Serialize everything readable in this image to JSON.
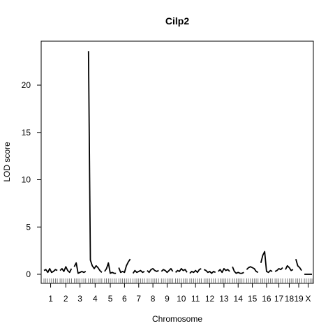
{
  "chart_data": {
    "type": "line",
    "title": "Cilp2",
    "xlabel": "Chromosome",
    "ylabel": "LOD score",
    "ylim": [
      -0.9,
      25.1
    ],
    "yticks": [
      0,
      5,
      10,
      15,
      20
    ],
    "grid": false,
    "legend": "none",
    "line_color": "#000000",
    "chromosomes": [
      {
        "label": "1",
        "x": [
          0,
          5,
          10,
          15,
          20,
          25,
          30,
          35
        ],
        "y": [
          0.4,
          0.5,
          0.2,
          0.6,
          0.2,
          0.3,
          0.5,
          0.4
        ]
      },
      {
        "label": "2",
        "x": [
          0,
          5,
          10,
          15,
          20,
          25,
          30
        ],
        "y": [
          0.4,
          0.6,
          0.3,
          0.8,
          0.4,
          0.2,
          0.6
        ]
      },
      {
        "label": "3",
        "x": [
          0,
          5,
          10,
          15,
          20,
          25,
          30
        ],
        "y": [
          0.8,
          1.2,
          0.1,
          0.2,
          0.3,
          0.2,
          0.3
        ]
      },
      {
        "label": "4",
        "x": [
          0,
          5,
          10,
          15,
          20,
          25,
          30,
          35
        ],
        "y": [
          23.6,
          1.5,
          0.9,
          0.6,
          0.9,
          0.7,
          0.4,
          0.2
        ]
      },
      {
        "label": "5",
        "x": [
          0,
          5,
          10,
          15,
          20,
          25,
          30
        ],
        "y": [
          0.3,
          0.6,
          1.2,
          0.1,
          0.2,
          0.1,
          0.1
        ]
      },
      {
        "label": "6",
        "x": [
          0,
          5,
          10,
          15,
          20,
          25,
          30
        ],
        "y": [
          0.7,
          0.2,
          0.3,
          0.2,
          0.9,
          1.3,
          1.6
        ]
      },
      {
        "label": "7",
        "x": [
          0,
          5,
          10,
          15,
          20,
          25,
          30
        ],
        "y": [
          0.1,
          0.4,
          0.2,
          0.3,
          0.4,
          0.2,
          0.3
        ]
      },
      {
        "label": "8",
        "x": [
          0,
          5,
          10,
          15,
          20,
          25,
          30
        ],
        "y": [
          0.4,
          0.2,
          0.5,
          0.6,
          0.4,
          0.3,
          0.4
        ]
      },
      {
        "label": "9",
        "x": [
          0,
          5,
          10,
          15,
          20,
          25,
          30
        ],
        "y": [
          0.3,
          0.5,
          0.4,
          0.2,
          0.4,
          0.6,
          0.3
        ]
      },
      {
        "label": "10",
        "x": [
          0,
          5,
          10,
          15,
          20,
          25,
          30
        ],
        "y": [
          0.2,
          0.4,
          0.3,
          0.6,
          0.4,
          0.5,
          0.2
        ]
      },
      {
        "label": "11",
        "x": [
          0,
          5,
          10,
          15,
          20,
          25,
          30
        ],
        "y": [
          0.1,
          0.3,
          0.2,
          0.4,
          0.2,
          0.5,
          0.6
        ]
      },
      {
        "label": "12",
        "x": [
          0,
          5,
          10,
          15,
          20,
          25,
          30
        ],
        "y": [
          0.5,
          0.4,
          0.2,
          0.3,
          0.1,
          0.3,
          0.2
        ]
      },
      {
        "label": "13",
        "x": [
          0,
          5,
          10,
          15,
          20,
          25,
          30
        ],
        "y": [
          0.3,
          0.5,
          0.2,
          0.6,
          0.4,
          0.5,
          0.3
        ]
      },
      {
        "label": "14",
        "x": [
          0,
          5,
          10,
          15,
          20,
          25,
          30
        ],
        "y": [
          0.8,
          0.3,
          0.1,
          0.2,
          0.1,
          0.1,
          0.2
        ]
      },
      {
        "label": "15",
        "x": [
          0,
          5,
          10,
          15,
          20,
          25,
          30
        ],
        "y": [
          0.5,
          0.7,
          0.8,
          0.7,
          0.6,
          0.3,
          0.2
        ]
      },
      {
        "label": "16",
        "x": [
          0,
          5,
          10,
          15,
          20,
          25,
          30
        ],
        "y": [
          1.2,
          2.0,
          2.4,
          0.3,
          0.2,
          0.4,
          0.3
        ]
      },
      {
        "label": "17",
        "x": [
          0,
          5,
          10,
          15,
          20
        ],
        "y": [
          0.3,
          0.4,
          0.6,
          0.5,
          0.7
        ]
      },
      {
        "label": "18",
        "x": [
          0,
          5,
          10,
          15,
          20
        ],
        "y": [
          0.5,
          0.9,
          0.7,
          0.4,
          0.5
        ]
      },
      {
        "label": "19",
        "x": [
          0,
          5,
          10,
          15
        ],
        "y": [
          1.6,
          0.9,
          0.7,
          0.4
        ]
      },
      {
        "label": "X",
        "x": [
          0,
          5,
          10,
          15,
          20
        ],
        "y": [
          0.0,
          0.0,
          0.0,
          0.0,
          0.0
        ]
      }
    ]
  }
}
